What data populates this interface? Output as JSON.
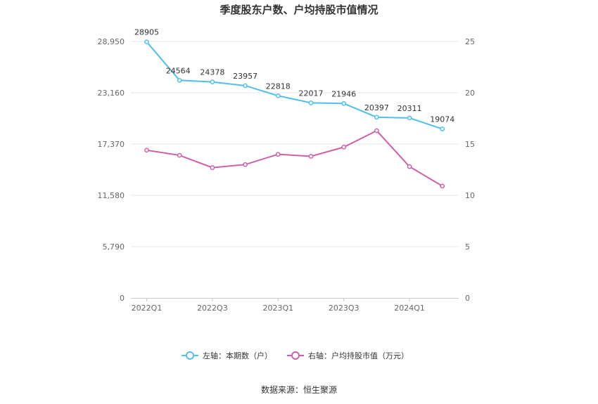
{
  "chart_data": {
    "type": "line",
    "title": "季度股东户数、户均持股市值情况",
    "categories": [
      "2022Q1",
      "2022Q2",
      "2022Q3",
      "2022Q4",
      "2023Q1",
      "2023Q2",
      "2023Q3",
      "2023Q4",
      "2024Q1",
      "2024Q2"
    ],
    "x_tick_labels": [
      "2022Q1",
      "2022Q3",
      "2023Q1",
      "2023Q3",
      "2024Q1"
    ],
    "left_axis": {
      "ticks": [
        "0",
        "5,790",
        "11,580",
        "17,370",
        "23,160",
        "28,950"
      ],
      "ylim": [
        0,
        28950
      ]
    },
    "right_axis": {
      "ticks": [
        "0",
        "5",
        "10",
        "15",
        "20",
        "25"
      ],
      "ylim": [
        0,
        25
      ]
    },
    "grid": true,
    "legend_position": "bottom",
    "series": [
      {
        "name": "左轴：本期数（户）",
        "axis": "left",
        "color": "#4fbfee",
        "values": [
          28905,
          24564,
          24378,
          23957,
          22818,
          22017,
          21946,
          20397,
          20311,
          19074
        ],
        "labels": [
          "28905",
          "24564",
          "24378",
          "23957",
          "22818",
          "22017",
          "21946",
          "20397",
          "20311",
          "19074"
        ]
      },
      {
        "name": "右轴：户均持股市值（万元）",
        "axis": "right",
        "color": "#d05fa8",
        "values": [
          14.4,
          13.9,
          12.7,
          13.0,
          14.0,
          13.8,
          14.7,
          16.3,
          12.8,
          10.9
        ]
      }
    ],
    "source": "数据来源：恒生聚源"
  }
}
